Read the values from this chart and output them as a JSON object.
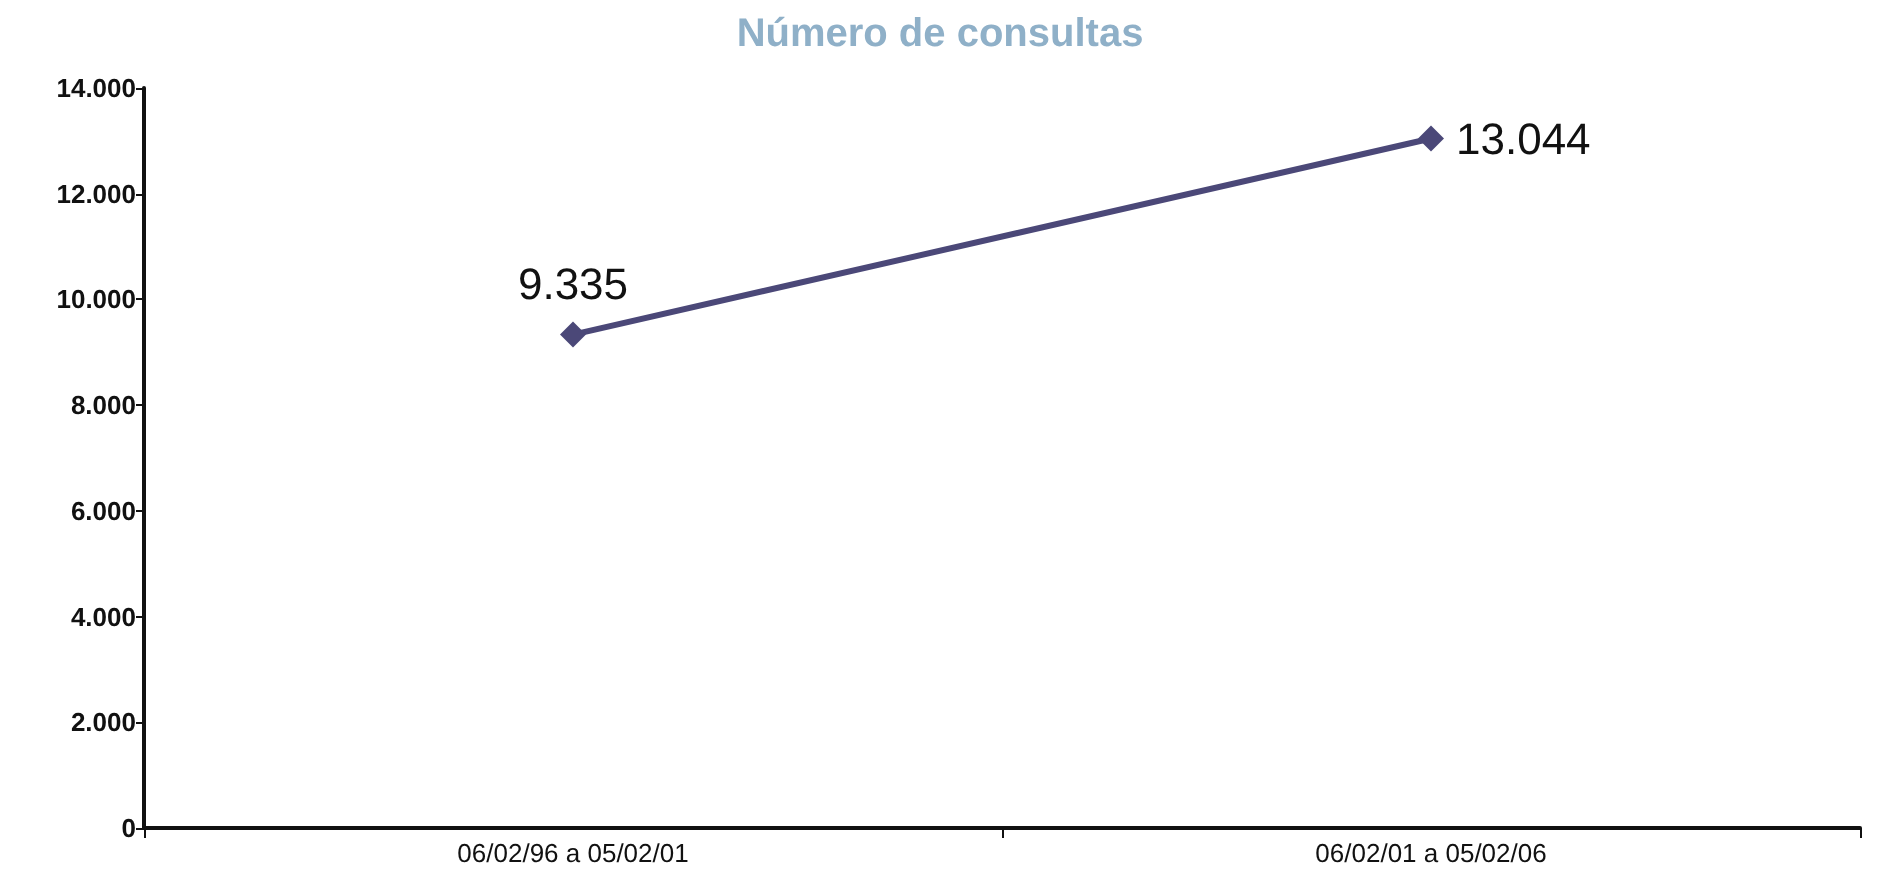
{
  "chart_data": {
    "type": "line",
    "title": "Número de consultas",
    "categories": [
      "06/02/96 a 05/02/01",
      "06/02/01 a 05/02/06"
    ],
    "series": [
      {
        "color": "#4b4878",
        "values": [
          9335,
          13044
        ],
        "value_labels": [
          "9.335",
          "13.044"
        ]
      }
    ],
    "ylim": [
      0,
      14000
    ],
    "yticks": [
      {
        "value": 0,
        "label": "0"
      },
      {
        "value": 2000,
        "label": "2.000"
      },
      {
        "value": 4000,
        "label": "4.000"
      },
      {
        "value": 6000,
        "label": "6.000"
      },
      {
        "value": 8000,
        "label": "8.000"
      },
      {
        "value": 10000,
        "label": "10.000"
      },
      {
        "value": 12000,
        "label": "12.000"
      },
      {
        "value": 14000,
        "label": "14.000"
      }
    ],
    "marker": "diamond",
    "line_style": "solid",
    "grid": false
  }
}
